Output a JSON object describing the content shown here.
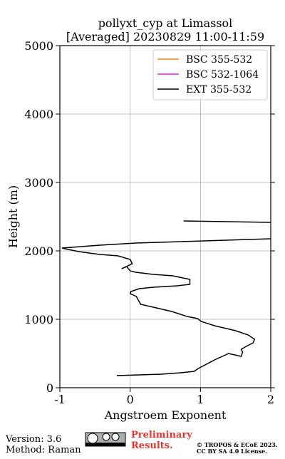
{
  "chart_data": {
    "type": "line",
    "title": "pollyxt_cyp at Limassol",
    "subtitle": "[Averaged] 20230829 11:00-11:59",
    "x_label": "Angstroem Exponent",
    "y_label": "Height (m)",
    "xlim": [
      -1,
      2
    ],
    "xticks": [
      -1,
      0,
      1,
      2
    ],
    "ylim": [
      0,
      5000
    ],
    "yticks": [
      0,
      1000,
      2000,
      3000,
      4000,
      5000
    ],
    "grid": true,
    "legend": "upper right",
    "series": [
      {
        "name": "BSC 355-532",
        "color": "#ff7f0e",
        "x": [],
        "y": []
      },
      {
        "name": "BSC 532-1064",
        "color": "#e020e0",
        "x": [],
        "y": []
      },
      {
        "name": "EXT 355-532",
        "color": "#000000",
        "x": [
          -0.19,
          0.44,
          0.72,
          0.91,
          0.97,
          1.2,
          1.4,
          1.58,
          1.6,
          1.58,
          1.65,
          1.75,
          1.77,
          1.68,
          1.5,
          1.2,
          1.01,
          0.96,
          0.81,
          0.59,
          0.33,
          0.15,
          0.11,
          0.09,
          0,
          0.01,
          0.13,
          0.33,
          0.67,
          0.85,
          0.85,
          0.61,
          0.33,
          0.08,
          0,
          -0.05,
          -0.12,
          0.03,
          0,
          -0.17,
          -0.43,
          -0.73,
          -0.88,
          -0.97,
          -0.83,
          -0.43,
          0.08,
          2.0,
          null,
          0.76,
          2.0
        ],
        "y": [
          177,
          198,
          219,
          240,
          281,
          406,
          500,
          458,
          521,
          563,
          604,
          656,
          708,
          771,
          833,
          906,
          969,
          1010,
          1042,
          1115,
          1177,
          1219,
          1292,
          1333,
          1375,
          1406,
          1448,
          1469,
          1490,
          1510,
          1583,
          1635,
          1656,
          1688,
          1708,
          1771,
          1740,
          1813,
          1875,
          1927,
          1948,
          1990,
          2021,
          2042,
          2052,
          2083,
          2115,
          2177,
          null,
          2438,
          2417
        ]
      }
    ]
  },
  "footer": {
    "version": "Version: 3.6",
    "method": "Method: Raman",
    "preliminary": "Preliminary",
    "results": "Results.",
    "copyright": "© TROPOS & ECoE 2023.",
    "license": "CC BY SA 4.0 License."
  }
}
